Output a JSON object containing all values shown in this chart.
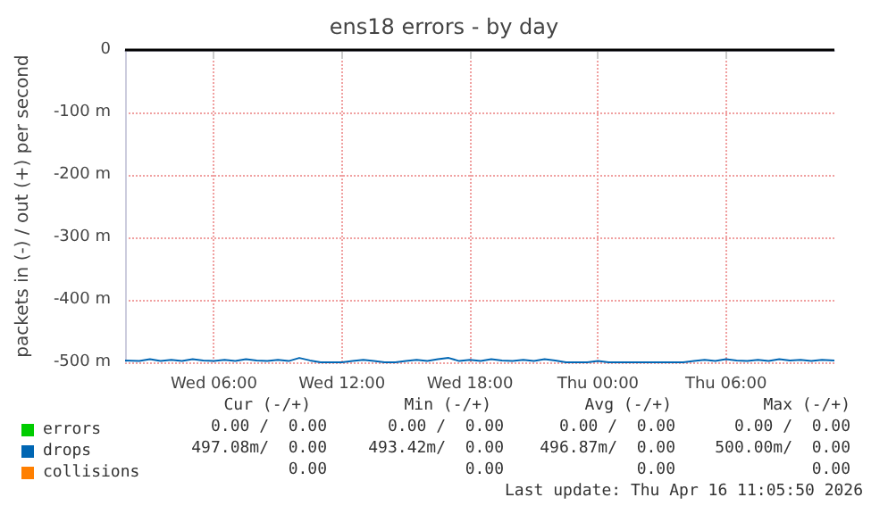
{
  "chart_data": {
    "type": "line",
    "title": "ens18 errors - by day",
    "ylabel": "packets in (-) / out (+) per second",
    "xlim": [
      "2026-04-15T01:50",
      "2026-04-16T11:05"
    ],
    "xticks": [
      {
        "value": "2026-04-15T06:00",
        "label": "Wed 06:00"
      },
      {
        "value": "2026-04-15T12:00",
        "label": "Wed 12:00"
      },
      {
        "value": "2026-04-15T18:00",
        "label": "Wed 18:00"
      },
      {
        "value": "2026-04-16T00:00",
        "label": "Thu 00:00"
      },
      {
        "value": "2026-04-16T06:00",
        "label": "Thu 06:00"
      }
    ],
    "ylim": [
      -500,
      0
    ],
    "yticks": [
      {
        "value": -500,
        "label": "-500 m"
      },
      {
        "value": -400,
        "label": "-400 m"
      },
      {
        "value": -300,
        "label": "-300 m"
      },
      {
        "value": -200,
        "label": "-200 m"
      },
      {
        "value": -100,
        "label": "-100 m"
      },
      0
    ],
    "grid": true,
    "legend": "bottom left",
    "ref_lines": [
      {
        "axis": "y",
        "value": 0,
        "color": "#000000"
      }
    ],
    "series": [
      {
        "name": "errors",
        "color": "#00cc00"
      },
      {
        "name": "drops",
        "color": "#0066b3",
        "x": [
          "2026-04-15T01:50",
          "2026-04-15T02:30",
          "2026-04-15T03:00",
          "2026-04-15T03:30",
          "2026-04-15T04:00",
          "2026-04-15T04:30",
          "2026-04-15T05:00",
          "2026-04-15T05:30",
          "2026-04-15T06:00",
          "2026-04-15T06:30",
          "2026-04-15T07:00",
          "2026-04-15T07:30",
          "2026-04-15T08:00",
          "2026-04-15T08:30",
          "2026-04-15T09:00",
          "2026-04-15T09:30",
          "2026-04-15T10:00",
          "2026-04-15T10:30",
          "2026-04-15T11:00",
          "2026-04-15T11:30",
          "2026-04-15T12:00",
          "2026-04-15T12:30",
          "2026-04-15T13:00",
          "2026-04-15T13:30",
          "2026-04-15T14:00",
          "2026-04-15T14:30",
          "2026-04-15T15:00",
          "2026-04-15T15:30",
          "2026-04-15T16:00",
          "2026-04-15T16:30",
          "2026-04-15T17:00",
          "2026-04-15T17:30",
          "2026-04-15T18:00",
          "2026-04-15T18:30",
          "2026-04-15T19:00",
          "2026-04-15T19:30",
          "2026-04-15T20:00",
          "2026-04-15T20:30",
          "2026-04-15T21:00",
          "2026-04-15T21:30",
          "2026-04-15T22:00",
          "2026-04-15T22:30",
          "2026-04-15T23:00",
          "2026-04-15T23:30",
          "2026-04-16T00:00",
          "2026-04-16T00:30",
          "2026-04-16T01:00",
          "2026-04-16T01:30",
          "2026-04-16T02:00",
          "2026-04-16T02:30",
          "2026-04-16T03:00",
          "2026-04-16T03:30",
          "2026-04-16T04:00",
          "2026-04-16T04:30",
          "2026-04-16T05:00",
          "2026-04-16T05:30",
          "2026-04-16T06:00",
          "2026-04-16T06:30",
          "2026-04-16T07:00",
          "2026-04-16T07:30",
          "2026-04-16T08:00",
          "2026-04-16T08:30",
          "2026-04-16T09:00",
          "2026-04-16T09:30",
          "2026-04-16T10:00",
          "2026-04-16T10:30",
          "2026-04-16T11:05"
        ],
        "values": [
          -497,
          -498,
          -495,
          -498,
          -496,
          -498,
          -495,
          -497,
          -498,
          -496,
          -498,
          -495,
          -497,
          -498,
          -496,
          -498,
          -493,
          -497,
          -500,
          -500,
          -500,
          -498,
          -496,
          -498,
          -500,
          -500,
          -498,
          -496,
          -498,
          -495,
          -493,
          -498,
          -496,
          -498,
          -495,
          -497,
          -498,
          -496,
          -498,
          -495,
          -497,
          -500,
          -500,
          -500,
          -498,
          -500,
          -500,
          -500,
          -500,
          -500,
          -500,
          -500,
          -500,
          -498,
          -496,
          -498,
          -495,
          -497,
          -498,
          -496,
          -498,
          -495,
          -497,
          -496,
          -498,
          -496,
          -497
        ]
      },
      {
        "name": "collisions",
        "color": "#ff7f00"
      }
    ],
    "annotations": [
      "Cur (-/+)",
      "Min (-/+)",
      "Avg (-/+)",
      "Max (-/+)",
      "0.00 /  0.00",
      "0.00 /  0.00",
      "0.00 /  0.00",
      "0.00 /  0.00",
      "497.08m/  0.00",
      "493.42m/  0.00",
      "496.87m/  0.00",
      "500.00m/  0.00",
      "0.00",
      "0.00",
      "0.00",
      "0.00",
      "Last update: Thu Apr 16 11:05:50 2026"
    ]
  }
}
